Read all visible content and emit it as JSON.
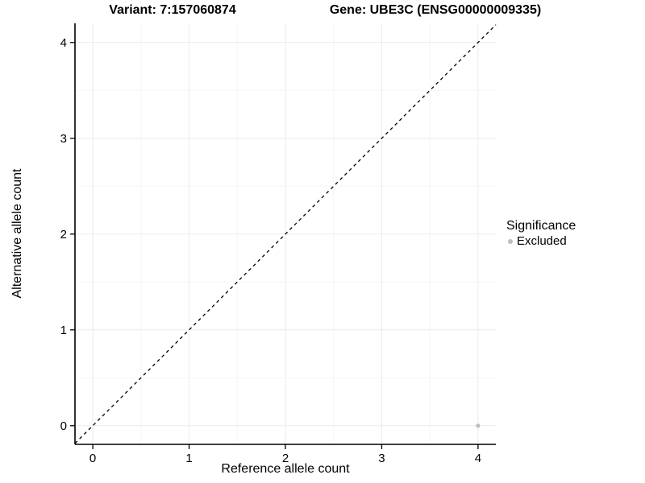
{
  "titles": {
    "left": "Variant: 7:157060874",
    "right": "Gene: UBE3C (ENSG00000009335)"
  },
  "legend": {
    "title": "Significance",
    "items": [
      {
        "label": "Excluded",
        "color": "#bdbdbd"
      }
    ]
  },
  "colors": {
    "axis": "#000000",
    "text": "#000000",
    "grid_major": "#ebebeb",
    "grid_minor": "#f6f6f6",
    "point": "#bdbdbd"
  },
  "chart_data": {
    "type": "scatter",
    "title": "Variant: 7:157060874 | Gene: UBE3C (ENSG00000009335)",
    "xlabel": "Reference allele count",
    "ylabel": "Alternative allele count",
    "xlim": [
      -0.185,
      4.185
    ],
    "ylim": [
      -0.195,
      4.2
    ],
    "xticks": [
      0,
      1,
      2,
      3,
      4
    ],
    "yticks": [
      0,
      1,
      2,
      3,
      4
    ],
    "xminor": [
      0.5,
      1.5,
      2.5,
      3.5
    ],
    "yminor": [
      0.5,
      1.5,
      2.5,
      3.5
    ],
    "grid": "major+minor",
    "legend_position": "right",
    "series": [
      {
        "name": "Excluded",
        "color": "#bdbdbd",
        "points": [
          {
            "x": 4,
            "y": 0
          }
        ]
      }
    ],
    "reference_line": {
      "type": "identity y=x",
      "style": "dashed",
      "color": "#000000"
    }
  }
}
